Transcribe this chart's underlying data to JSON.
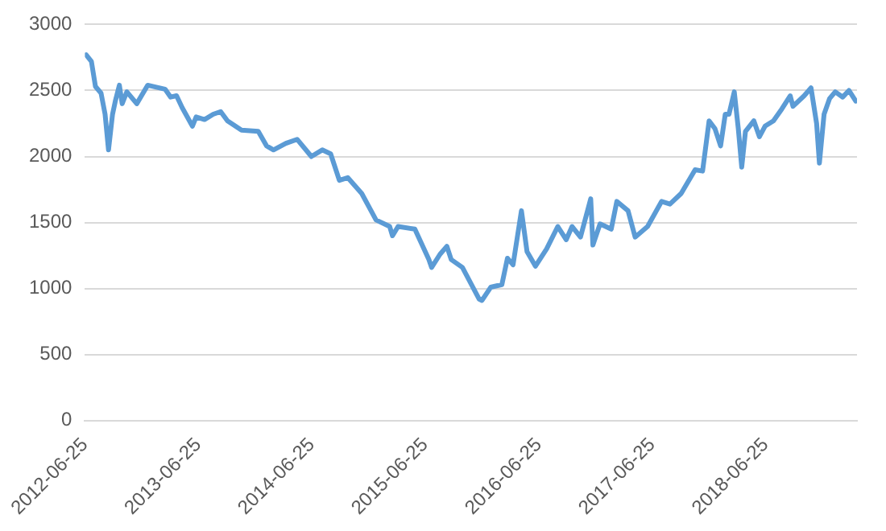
{
  "chart_data": {
    "type": "line",
    "x": [
      "2012-06-29",
      "2012-07-16",
      "2012-07-29",
      "2012-08-16",
      "2012-08-29",
      "2012-09-09",
      "2012-09-22",
      "2012-10-01",
      "2012-10-14",
      "2012-10-23",
      "2012-11-07",
      "2012-12-09",
      "2013-01-13",
      "2013-03-10",
      "2013-03-28",
      "2013-04-16",
      "2013-05-04",
      "2013-06-06",
      "2013-06-18",
      "2013-07-15",
      "2013-08-12",
      "2013-09-05",
      "2013-09-27",
      "2013-11-11",
      "2014-01-04",
      "2014-01-31",
      "2014-02-22",
      "2014-04-03",
      "2014-05-09",
      "2014-06-24",
      "2014-07-29",
      "2014-08-25",
      "2014-09-22",
      "2014-10-19",
      "2014-12-03",
      "2015-01-18",
      "2015-03-03",
      "2015-03-12",
      "2015-03-30",
      "2015-05-23",
      "2015-07-07",
      "2015-07-16",
      "2015-08-12",
      "2015-09-03",
      "2015-09-17",
      "2015-10-23",
      "2015-12-16",
      "2015-12-25",
      "2016-01-22",
      "2016-02-27",
      "2016-03-16",
      "2016-04-03",
      "2016-04-30",
      "2016-05-18",
      "2016-06-14",
      "2016-07-20",
      "2016-08-25",
      "2016-09-21",
      "2016-10-10",
      "2016-11-06",
      "2016-12-09",
      "2016-12-16",
      "2017-01-08",
      "2017-02-13",
      "2017-03-03",
      "2017-04-08",
      "2017-05-01",
      "2017-06-10",
      "2017-07-25",
      "2017-08-21",
      "2017-09-26",
      "2017-11-10",
      "2017-12-04",
      "2017-12-25",
      "2018-01-13",
      "2018-01-31",
      "2018-02-15",
      "2018-02-27",
      "2018-03-16",
      "2018-03-29",
      "2018-04-09",
      "2018-04-21",
      "2018-05-18",
      "2018-06-05",
      "2018-06-23",
      "2018-07-20",
      "2018-08-16",
      "2018-09-12",
      "2018-09-21",
      "2018-10-27",
      "2018-11-18",
      "2018-12-06",
      "2018-12-15",
      "2018-12-30",
      "2019-01-17",
      "2019-02-04",
      "2019-02-28",
      "2019-03-20",
      "2019-04-11"
    ],
    "series": [
      {
        "color": "#5b9bd5",
        "values": [
          2770,
          2720,
          2530,
          2480,
          2320,
          2050,
          2320,
          2420,
          2540,
          2400,
          2490,
          2400,
          2540,
          2510,
          2450,
          2460,
          2370,
          2230,
          2300,
          2280,
          2320,
          2340,
          2270,
          2200,
          2190,
          2080,
          2050,
          2100,
          2130,
          2000,
          2050,
          2020,
          1820,
          1840,
          1720,
          1520,
          1470,
          1400,
          1470,
          1450,
          1220,
          1160,
          1260,
          1320,
          1220,
          1160,
          920,
          910,
          1010,
          1030,
          1230,
          1180,
          1590,
          1280,
          1170,
          1300,
          1470,
          1370,
          1470,
          1390,
          1680,
          1330,
          1490,
          1450,
          1660,
          1590,
          1390,
          1470,
          1660,
          1640,
          1720,
          1900,
          1890,
          2270,
          2210,
          2080,
          2320,
          2320,
          2490,
          2210,
          1920,
          2190,
          2270,
          2150,
          2230,
          2270,
          2360,
          2460,
          2380,
          2460,
          2520,
          2250,
          1950,
          2320,
          2440,
          2490,
          2450,
          2500,
          2420
        ]
      }
    ],
    "xlim": [
      "2012-06-25",
      "2019-04-15"
    ],
    "xticks": [
      "2012-06-25",
      "2013-06-25",
      "2014-06-25",
      "2015-06-25",
      "2016-06-25",
      "2017-06-25",
      "2018-06-25"
    ],
    "ylim": [
      0,
      3000
    ],
    "yticks": [
      0,
      500,
      1000,
      1500,
      2000,
      2500,
      3000
    ],
    "grid": "y",
    "legend": false,
    "marker": "none",
    "line_style": "solid"
  }
}
